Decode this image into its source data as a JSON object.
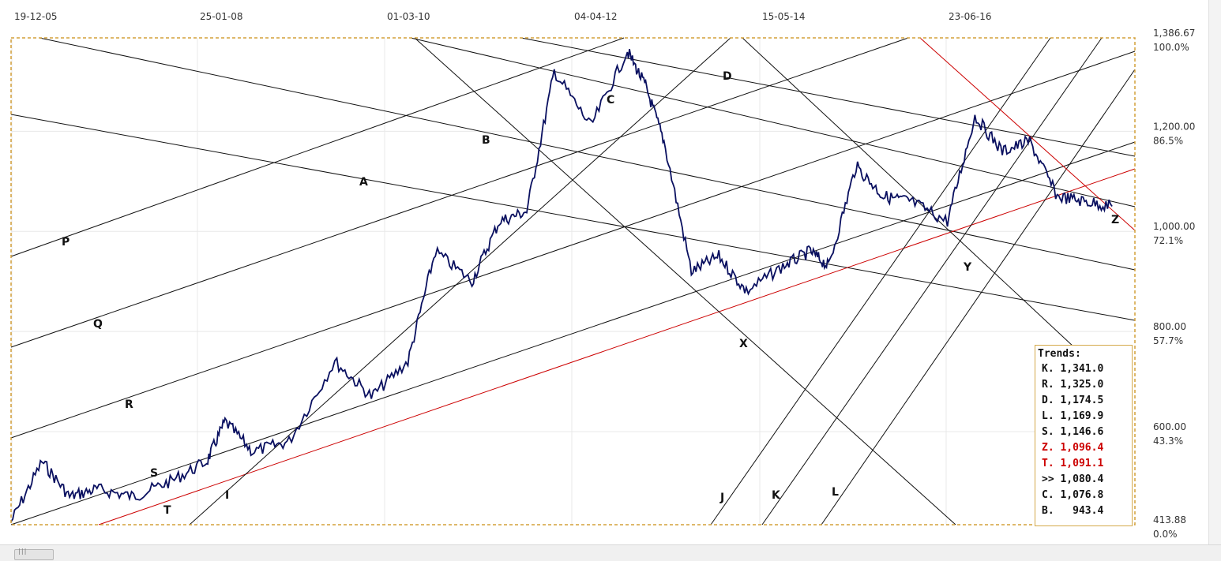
{
  "chart_data": {
    "type": "line",
    "title": "",
    "dates": [
      "19-12-05",
      "25-01-08",
      "01-03-10",
      "04-04-12",
      "15-05-14",
      "23-06-16"
    ],
    "x_range_years": [
      2005.96,
      2018.25
    ],
    "y_range": [
      413.88,
      1386.67
    ],
    "y_labels": [
      {
        "value": 1386.67,
        "label": "1,386.67",
        "pct": "100.0%"
      },
      {
        "value": 1200.0,
        "label": "1,200.00",
        "pct": "86.5%"
      },
      {
        "value": 1000.0,
        "label": "1,000.00",
        "pct": "72.1%"
      },
      {
        "value": 800.0,
        "label": "800.00",
        "pct": "57.7%"
      },
      {
        "value": 600.0,
        "label": "600.00",
        "pct": "43.3%"
      },
      {
        "value": 413.88,
        "label": "413.88",
        "pct": "0.0%"
      }
    ],
    "series": [
      {
        "x": [
          2005.96,
          2006.3,
          2006.6,
          2006.9,
          2007.3,
          2007.7,
          2008.1,
          2008.3,
          2008.6,
          2009.0,
          2009.5,
          2009.9,
          2010.3,
          2010.6,
          2011.0,
          2011.3,
          2011.6,
          2011.9,
          2012.3,
          2012.7,
          2012.9,
          2013.1,
          2013.4,
          2013.7,
          2014.0,
          2014.4,
          2014.7,
          2014.9,
          2015.2,
          2015.5,
          2015.8,
          2016.2,
          2016.5,
          2016.8,
          2017.1,
          2017.4,
          2017.7,
          2018.0
        ],
        "values": [
          420,
          540,
          470,
          485,
          470,
          500,
          540,
          620,
          560,
          580,
          740,
          670,
          740,
          960,
          900,
          1020,
          1040,
          1320,
          1210,
          1360,
          1290,
          1180,
          920,
          950,
          880,
          930,
          960,
          930,
          1130,
          1070,
          1060,
          1020,
          1230,
          1160,
          1180,
          1070,
          1060,
          1050
        ]
      }
    ],
    "trend_lines": [
      {
        "name": "A"
      },
      {
        "name": "B"
      },
      {
        "name": "C"
      },
      {
        "name": "D"
      },
      {
        "name": "P"
      },
      {
        "name": "Q"
      },
      {
        "name": "R"
      },
      {
        "name": "S"
      },
      {
        "name": "T",
        "color": "#cc0000"
      },
      {
        "name": "I"
      },
      {
        "name": "J"
      },
      {
        "name": "K"
      },
      {
        "name": "L"
      },
      {
        "name": "X"
      },
      {
        "name": "Y"
      },
      {
        "name": "Z",
        "color": "#cc0000"
      }
    ]
  },
  "trends_panel": {
    "title": "Trends:",
    "items": [
      {
        "label": "K. 1,341.0",
        "color": "#111111"
      },
      {
        "label": "R. 1,325.0",
        "color": "#111111"
      },
      {
        "label": "D. 1,174.5",
        "color": "#111111"
      },
      {
        "label": "L. 1,169.9",
        "color": "#111111"
      },
      {
        "label": "S. 1,146.6",
        "color": "#111111"
      },
      {
        "label": "Z. 1,096.4",
        "color": "#cc0000"
      },
      {
        "label": "T. 1,091.1",
        "color": "#cc0000"
      },
      {
        "label": ">> 1,080.4",
        "color": "#111111"
      },
      {
        "label": "C. 1,076.8",
        "color": "#111111"
      },
      {
        "label": "B.   943.4",
        "color": "#111111"
      }
    ]
  },
  "colors": {
    "price": "#0a1060",
    "trend": "#111111",
    "accent_red": "#cc0000",
    "frame": "#d4a03a",
    "grid": "#e6e6e6"
  },
  "scrollbar": {
    "grip": "|||"
  }
}
